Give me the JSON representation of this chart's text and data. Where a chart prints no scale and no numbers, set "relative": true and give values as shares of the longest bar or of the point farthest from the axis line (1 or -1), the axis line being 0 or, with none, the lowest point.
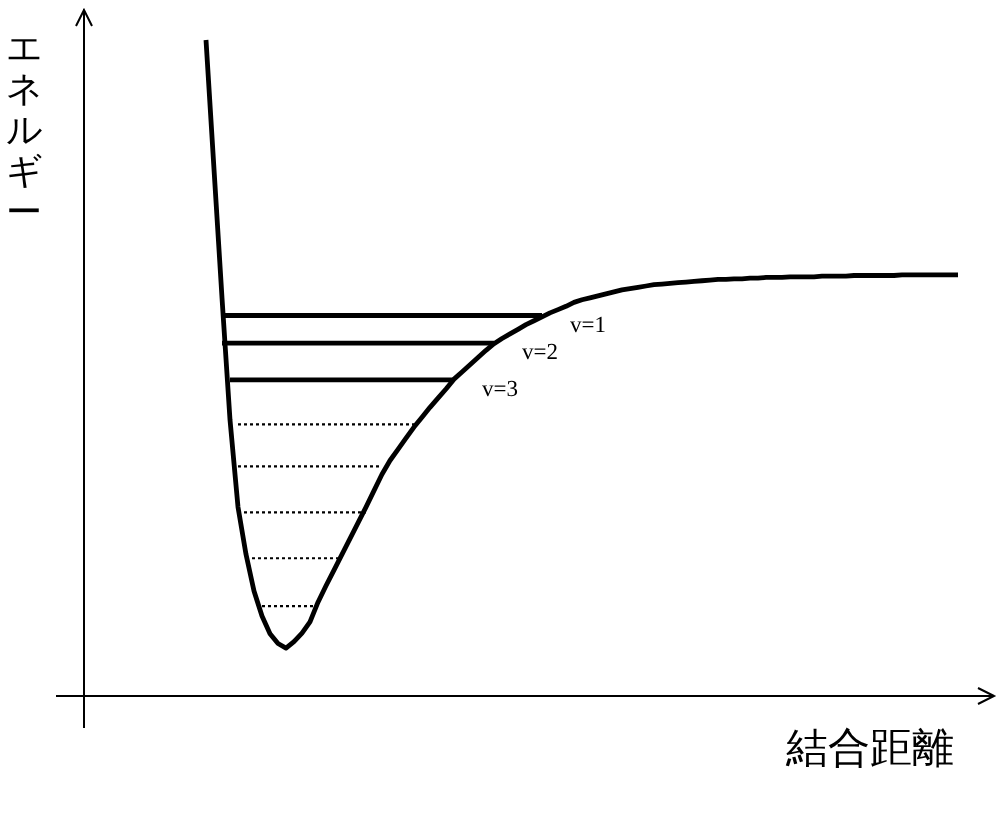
{
  "chart_data": {
    "type": "line",
    "relative": true,
    "xlabel": "結合距離",
    "ylabel": "エネルギー",
    "categories": [
      null,
      null,
      null,
      null,
      null,
      null,
      null,
      null,
      null,
      null,
      null,
      null,
      null,
      null,
      null,
      null,
      null,
      null,
      null,
      null,
      null,
      null,
      null,
      null,
      null,
      null,
      null,
      null,
      null,
      null,
      null,
      null,
      null,
      null,
      null,
      null,
      null,
      null,
      null,
      null,
      null,
      null,
      null,
      null,
      null,
      null,
      null,
      null,
      null,
      null,
      null,
      null,
      null,
      null,
      null,
      null,
      null,
      null,
      null,
      null,
      null,
      null,
      null,
      null,
      null,
      null,
      null,
      null,
      null,
      null,
      null,
      null,
      null,
      null,
      null,
      null,
      null,
      null,
      null,
      null,
      null,
      null,
      null,
      null,
      null,
      null,
      null,
      null,
      null,
      null,
      null,
      null,
      null,
      null,
      null
    ],
    "series": [
      {
        "color": "#000000",
        "line_style": "solid",
        "values": [
          1.0,
          0.803,
          0.607,
          0.421,
          0.288,
          0.216,
          0.16,
          0.122,
          0.095,
          0.08,
          0.073,
          0.083,
          0.096,
          0.113,
          0.143,
          0.168,
          0.192,
          0.216,
          0.24,
          0.264,
          0.288,
          0.313,
          0.338,
          0.359,
          0.376,
          0.393,
          0.41,
          0.425,
          0.44,
          0.454,
          0.468,
          0.483,
          0.494,
          0.505,
          0.516,
          0.527,
          0.537,
          0.545,
          0.552,
          0.559,
          0.566,
          0.572,
          0.578,
          0.584,
          0.589,
          0.594,
          0.6,
          0.604,
          0.607,
          0.61,
          0.613,
          0.616,
          0.619,
          0.621,
          0.623,
          0.625,
          0.627,
          0.628,
          0.629,
          0.63,
          0.631,
          0.632,
          0.633,
          0.634,
          0.635,
          0.635,
          0.636,
          0.636,
          0.637,
          0.637,
          0.638,
          0.638,
          0.638,
          0.639,
          0.639,
          0.639,
          0.639,
          0.64,
          0.64,
          0.64,
          0.64,
          0.641,
          0.641,
          0.641,
          0.641,
          0.641,
          0.641,
          0.642,
          0.642,
          0.642,
          0.642,
          0.642,
          0.642,
          0.642,
          0.642
        ]
      },
      {
        "name": "v=1",
        "color": "#000000",
        "line_style": "solid",
        "values": [
          null,
          null,
          0.58,
          0.58,
          0.58,
          0.58,
          0.58,
          0.58,
          0.58,
          0.58,
          0.58,
          0.58,
          0.58,
          0.58,
          0.58,
          0.58,
          0.58,
          0.58,
          0.58,
          0.58,
          0.58,
          0.58,
          0.58,
          0.58,
          0.58,
          0.58,
          0.58,
          0.58,
          0.58,
          0.58,
          0.58,
          0.58,
          0.58,
          0.58,
          0.58,
          0.58,
          0.58,
          0.58,
          0.58,
          0.58,
          0.58,
          0.58,
          0.58,
          null,
          null,
          null,
          null,
          null,
          null,
          null,
          null,
          null,
          null,
          null,
          null,
          null,
          null,
          null,
          null,
          null,
          null,
          null,
          null,
          null,
          null,
          null,
          null,
          null,
          null,
          null,
          null,
          null,
          null,
          null,
          null,
          null,
          null,
          null,
          null,
          null,
          null,
          null,
          null,
          null,
          null,
          null,
          null,
          null,
          null,
          null,
          null,
          null,
          null,
          null,
          null
        ]
      },
      {
        "name": "v=2",
        "color": "#000000",
        "line_style": "solid",
        "values": [
          null,
          null,
          0.538,
          0.538,
          0.538,
          0.538,
          0.538,
          0.538,
          0.538,
          0.538,
          0.538,
          0.538,
          0.538,
          0.538,
          0.538,
          0.538,
          0.538,
          0.538,
          0.538,
          0.538,
          0.538,
          0.538,
          0.538,
          0.538,
          0.538,
          0.538,
          0.538,
          0.538,
          0.538,
          0.538,
          0.538,
          0.538,
          0.538,
          0.538,
          0.538,
          0.538,
          0.538,
          null,
          null,
          null,
          null,
          null,
          null,
          null,
          null,
          null,
          null,
          null,
          null,
          null,
          null,
          null,
          null,
          null,
          null,
          null,
          null,
          null,
          null,
          null,
          null,
          null,
          null,
          null,
          null,
          null,
          null,
          null,
          null,
          null,
          null,
          null,
          null,
          null,
          null,
          null,
          null,
          null,
          null,
          null,
          null,
          null,
          null,
          null,
          null,
          null,
          null,
          null,
          null,
          null,
          null,
          null,
          null,
          null,
          null
        ]
      },
      {
        "name": "v=3",
        "color": "#000000",
        "line_style": "solid",
        "values": [
          null,
          null,
          null,
          0.482,
          0.482,
          0.482,
          0.482,
          0.482,
          0.482,
          0.482,
          0.482,
          0.482,
          0.482,
          0.482,
          0.482,
          0.482,
          0.482,
          0.482,
          0.482,
          0.482,
          0.482,
          0.482,
          0.482,
          0.482,
          0.482,
          0.482,
          0.482,
          0.482,
          0.482,
          0.482,
          0.482,
          0.482,
          null,
          null,
          null,
          null,
          null,
          null,
          null,
          null,
          null,
          null,
          null,
          null,
          null,
          null,
          null,
          null,
          null,
          null,
          null,
          null,
          null,
          null,
          null,
          null,
          null,
          null,
          null,
          null,
          null,
          null,
          null,
          null,
          null,
          null,
          null,
          null,
          null,
          null,
          null,
          null,
          null,
          null,
          null,
          null,
          null,
          null,
          null,
          null,
          null,
          null,
          null,
          null,
          null,
          null,
          null,
          null,
          null,
          null,
          null,
          null,
          null,
          null,
          null
        ]
      },
      {
        "color": "#000000",
        "line_style": "dotted",
        "values": [
          null,
          null,
          null,
          null,
          0.414,
          0.414,
          0.414,
          0.414,
          0.414,
          0.414,
          0.414,
          0.414,
          0.414,
          0.414,
          0.414,
          0.414,
          0.414,
          0.414,
          0.414,
          0.414,
          0.414,
          0.414,
          0.414,
          0.414,
          0.414,
          0.414,
          0.414,
          null,
          null,
          null,
          null,
          null,
          null,
          null,
          null,
          null,
          null,
          null,
          null,
          null,
          null,
          null,
          null,
          null,
          null,
          null,
          null,
          null,
          null,
          null,
          null,
          null,
          null,
          null,
          null,
          null,
          null,
          null,
          null,
          null,
          null,
          null,
          null,
          null,
          null,
          null,
          null,
          null,
          null,
          null,
          null,
          null,
          null,
          null,
          null,
          null,
          null,
          null,
          null,
          null,
          null,
          null,
          null,
          null,
          null,
          null,
          null,
          null,
          null,
          null,
          null,
          null,
          null,
          null,
          null
        ]
      },
      {
        "color": "#000000",
        "line_style": "dotted",
        "values": [
          null,
          null,
          null,
          null,
          0.35,
          0.35,
          0.35,
          0.35,
          0.35,
          0.35,
          0.35,
          0.35,
          0.35,
          0.35,
          0.35,
          0.35,
          0.35,
          0.35,
          0.35,
          0.35,
          0.35,
          0.35,
          0.35,
          null,
          null,
          null,
          null,
          null,
          null,
          null,
          null,
          null,
          null,
          null,
          null,
          null,
          null,
          null,
          null,
          null,
          null,
          null,
          null,
          null,
          null,
          null,
          null,
          null,
          null,
          null,
          null,
          null,
          null,
          null,
          null,
          null,
          null,
          null,
          null,
          null,
          null,
          null,
          null,
          null,
          null,
          null,
          null,
          null,
          null,
          null,
          null,
          null,
          null,
          null,
          null,
          null,
          null,
          null,
          null,
          null,
          null,
          null,
          null,
          null,
          null,
          null,
          null,
          null,
          null,
          null,
          null,
          null,
          null,
          null,
          null
        ]
      },
      {
        "color": "#000000",
        "line_style": "dotted",
        "values": [
          null,
          null,
          null,
          null,
          0.28,
          0.28,
          0.28,
          0.28,
          0.28,
          0.28,
          0.28,
          0.28,
          0.28,
          0.28,
          0.28,
          0.28,
          0.28,
          0.28,
          0.28,
          0.28,
          0.28,
          null,
          null,
          null,
          null,
          null,
          null,
          null,
          null,
          null,
          null,
          null,
          null,
          null,
          null,
          null,
          null,
          null,
          null,
          null,
          null,
          null,
          null,
          null,
          null,
          null,
          null,
          null,
          null,
          null,
          null,
          null,
          null,
          null,
          null,
          null,
          null,
          null,
          null,
          null,
          null,
          null,
          null,
          null,
          null,
          null,
          null,
          null,
          null,
          null,
          null,
          null,
          null,
          null,
          null,
          null,
          null,
          null,
          null,
          null,
          null,
          null,
          null,
          null,
          null,
          null,
          null,
          null,
          null,
          null,
          null,
          null,
          null,
          null,
          null
        ]
      },
      {
        "color": "#000000",
        "line_style": "dotted",
        "values": [
          null,
          null,
          null,
          null,
          null,
          0.21,
          0.21,
          0.21,
          0.21,
          0.21,
          0.21,
          0.21,
          0.21,
          0.21,
          0.21,
          0.21,
          0.21,
          0.21,
          null,
          null,
          null,
          null,
          null,
          null,
          null,
          null,
          null,
          null,
          null,
          null,
          null,
          null,
          null,
          null,
          null,
          null,
          null,
          null,
          null,
          null,
          null,
          null,
          null,
          null,
          null,
          null,
          null,
          null,
          null,
          null,
          null,
          null,
          null,
          null,
          null,
          null,
          null,
          null,
          null,
          null,
          null,
          null,
          null,
          null,
          null,
          null,
          null,
          null,
          null,
          null,
          null,
          null,
          null,
          null,
          null,
          null,
          null,
          null,
          null,
          null,
          null,
          null,
          null,
          null,
          null,
          null,
          null,
          null,
          null,
          null,
          null,
          null,
          null,
          null,
          null
        ]
      },
      {
        "color": "#000000",
        "line_style": "dotted",
        "values": [
          null,
          null,
          null,
          null,
          null,
          null,
          null,
          0.137,
          0.137,
          0.137,
          0.137,
          0.137,
          0.137,
          0.137,
          0.137,
          null,
          null,
          null,
          null,
          null,
          null,
          null,
          null,
          null,
          null,
          null,
          null,
          null,
          null,
          null,
          null,
          null,
          null,
          null,
          null,
          null,
          null,
          null,
          null,
          null,
          null,
          null,
          null,
          null,
          null,
          null,
          null,
          null,
          null,
          null,
          null,
          null,
          null,
          null,
          null,
          null,
          null,
          null,
          null,
          null,
          null,
          null,
          null,
          null,
          null,
          null,
          null,
          null,
          null,
          null,
          null,
          null,
          null,
          null,
          null,
          null,
          null,
          null,
          null,
          null,
          null,
          null,
          null,
          null,
          null,
          null,
          null,
          null,
          null,
          null,
          null,
          null,
          null,
          null,
          null
        ]
      }
    ]
  }
}
